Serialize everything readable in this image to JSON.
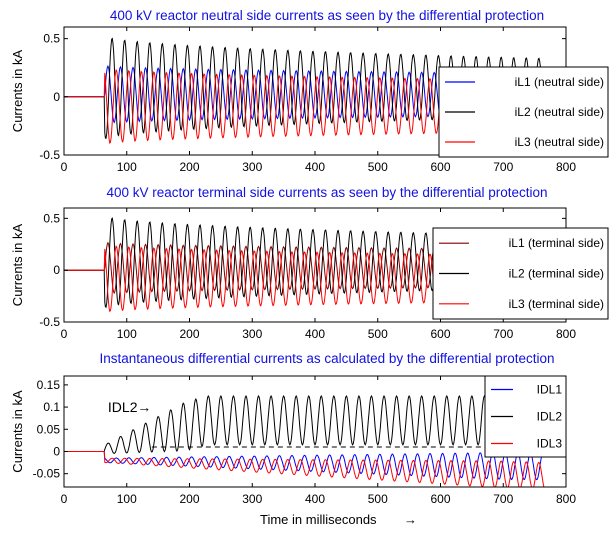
{
  "xlabel": "Time in milliseconds",
  "xlabel_arrow": "→",
  "chart_data": [
    {
      "type": "line",
      "title": "400 kV reactor neutral side currents as seen by the differential protection",
      "xlabel": "",
      "ylabel": "Currents in kA",
      "xlim": [
        0,
        800
      ],
      "ylim": [
        -0.5,
        0.6
      ],
      "xticks": [
        "0",
        "100",
        "200",
        "300",
        "400",
        "500",
        "600",
        "700",
        "800"
      ],
      "yticks": [
        "-0.5",
        "0",
        "0.5"
      ],
      "legend_position": "right",
      "series": [
        {
          "name": "iL1 (neutral side)",
          "color": "#0000ff",
          "description_values": {
            "pre_fault_ms": 65,
            "end_ms": 765,
            "period_ms": 20,
            "peak_kA_start": 0.25,
            "peak_kA_end": 0.18,
            "offset_kA": 0.02
          }
        },
        {
          "name": "iL2 (neutral side)",
          "color": "#000000",
          "description_values": {
            "pre_fault_ms": 65,
            "end_ms": 765,
            "period_ms": 20,
            "peak_kA_start": 0.45,
            "peak_kA_end": 0.25,
            "offset_kA": 0.08
          }
        },
        {
          "name": "iL3 (neutral side)",
          "color": "#ff0000",
          "description_values": {
            "pre_fault_ms": 65,
            "end_ms": 765,
            "period_ms": 20,
            "peak_kA_start": 0.33,
            "peak_kA_end": 0.22,
            "offset_kA": -0.08
          }
        }
      ]
    },
    {
      "type": "line",
      "title": "400 kV reactor terminal side currents as seen by the differential protection",
      "xlabel": "",
      "ylabel": "Currents in kA",
      "xlim": [
        0,
        800
      ],
      "ylim": [
        -0.5,
        0.6
      ],
      "xticks": [
        "0",
        "100",
        "200",
        "300",
        "400",
        "500",
        "600",
        "700",
        "800"
      ],
      "yticks": [
        "-0.5",
        "0",
        "0.5"
      ],
      "legend_position": "right",
      "series": [
        {
          "name": "iL1 (terminal side)",
          "color": "#800000",
          "description_values": {
            "pre_fault_ms": 65,
            "end_ms": 765,
            "period_ms": 20,
            "peak_kA_start": 0.25,
            "peak_kA_end": 0.18,
            "offset_kA": 0.02
          }
        },
        {
          "name": "iL2 (terminal side)",
          "color": "#000000",
          "description_values": {
            "pre_fault_ms": 65,
            "end_ms": 765,
            "period_ms": 20,
            "peak_kA_start": 0.45,
            "peak_kA_end": 0.25,
            "offset_kA": 0.08
          }
        },
        {
          "name": "iL3 (terminal side)",
          "color": "#ff0000",
          "description_values": {
            "pre_fault_ms": 65,
            "end_ms": 765,
            "period_ms": 20,
            "peak_kA_start": 0.33,
            "peak_kA_end": 0.22,
            "offset_kA": -0.08
          }
        }
      ]
    },
    {
      "type": "line",
      "title": "Instantaneous differential currents as calculated by the differential protection",
      "xlabel": "",
      "ylabel": "Currents in kA",
      "xlim": [
        0,
        800
      ],
      "ylim": [
        -0.08,
        0.17
      ],
      "xticks": [
        "0",
        "100",
        "200",
        "300",
        "400",
        "500",
        "600",
        "700",
        "800"
      ],
      "yticks": [
        "-0.05",
        "0",
        "0.05",
        "0.1",
        "0.15"
      ],
      "legend_position": "top-right",
      "annotation": {
        "text": "IDL2",
        "arrow": "→",
        "x": 155,
        "y": 0.1
      },
      "dashed_level": {
        "y": 0.01,
        "x_start": 140,
        "x_end": 800
      },
      "series": [
        {
          "name": "IDL1",
          "color": "#0000ff"
        },
        {
          "name": "IDL2",
          "color": "#000000"
        },
        {
          "name": "IDL3",
          "color": "#ff0000"
        }
      ]
    }
  ]
}
